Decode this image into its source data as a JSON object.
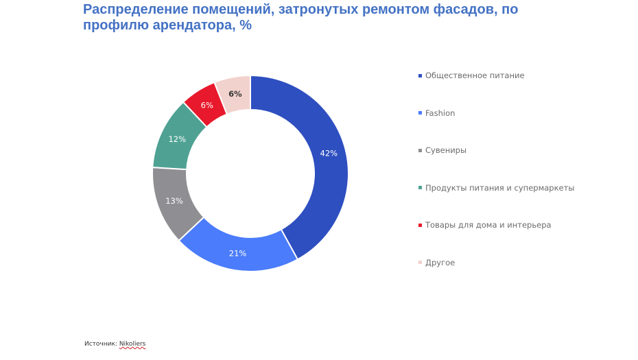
{
  "chart_data": {
    "type": "pie",
    "title": "Распределение помещений, затронутых ремонтом фасадов, по профилю арендатора, %",
    "variant": "donut",
    "legend_position": "right",
    "slices": [
      {
        "label": "Общественное питание",
        "value": 42,
        "display": "42%",
        "color": "#2E4FC0",
        "label_color": "#ffffff"
      },
      {
        "label": "Fashion",
        "value": 21,
        "display": "21%",
        "color": "#4A7CFB",
        "label_color": "#ffffff"
      },
      {
        "label": "Сувениры",
        "value": 13,
        "display": "13%",
        "color": "#8F8F93",
        "label_color": "#ffffff"
      },
      {
        "label": "Продукты питания и супермаркеты",
        "value": 12,
        "display": "12%",
        "color": "#4FA293",
        "label_color": "#ffffff"
      },
      {
        "label": "Товары для дома и интерьера",
        "value": 6,
        "display": "6%",
        "color": "#E8192C",
        "label_color": "#ffffff"
      },
      {
        "label": "Другое",
        "value": 6,
        "display": "6%",
        "color": "#F2D2CD",
        "label_color": "#333333"
      }
    ]
  },
  "source": {
    "prefix": "Источник: ",
    "name": "Nikoliers"
  }
}
